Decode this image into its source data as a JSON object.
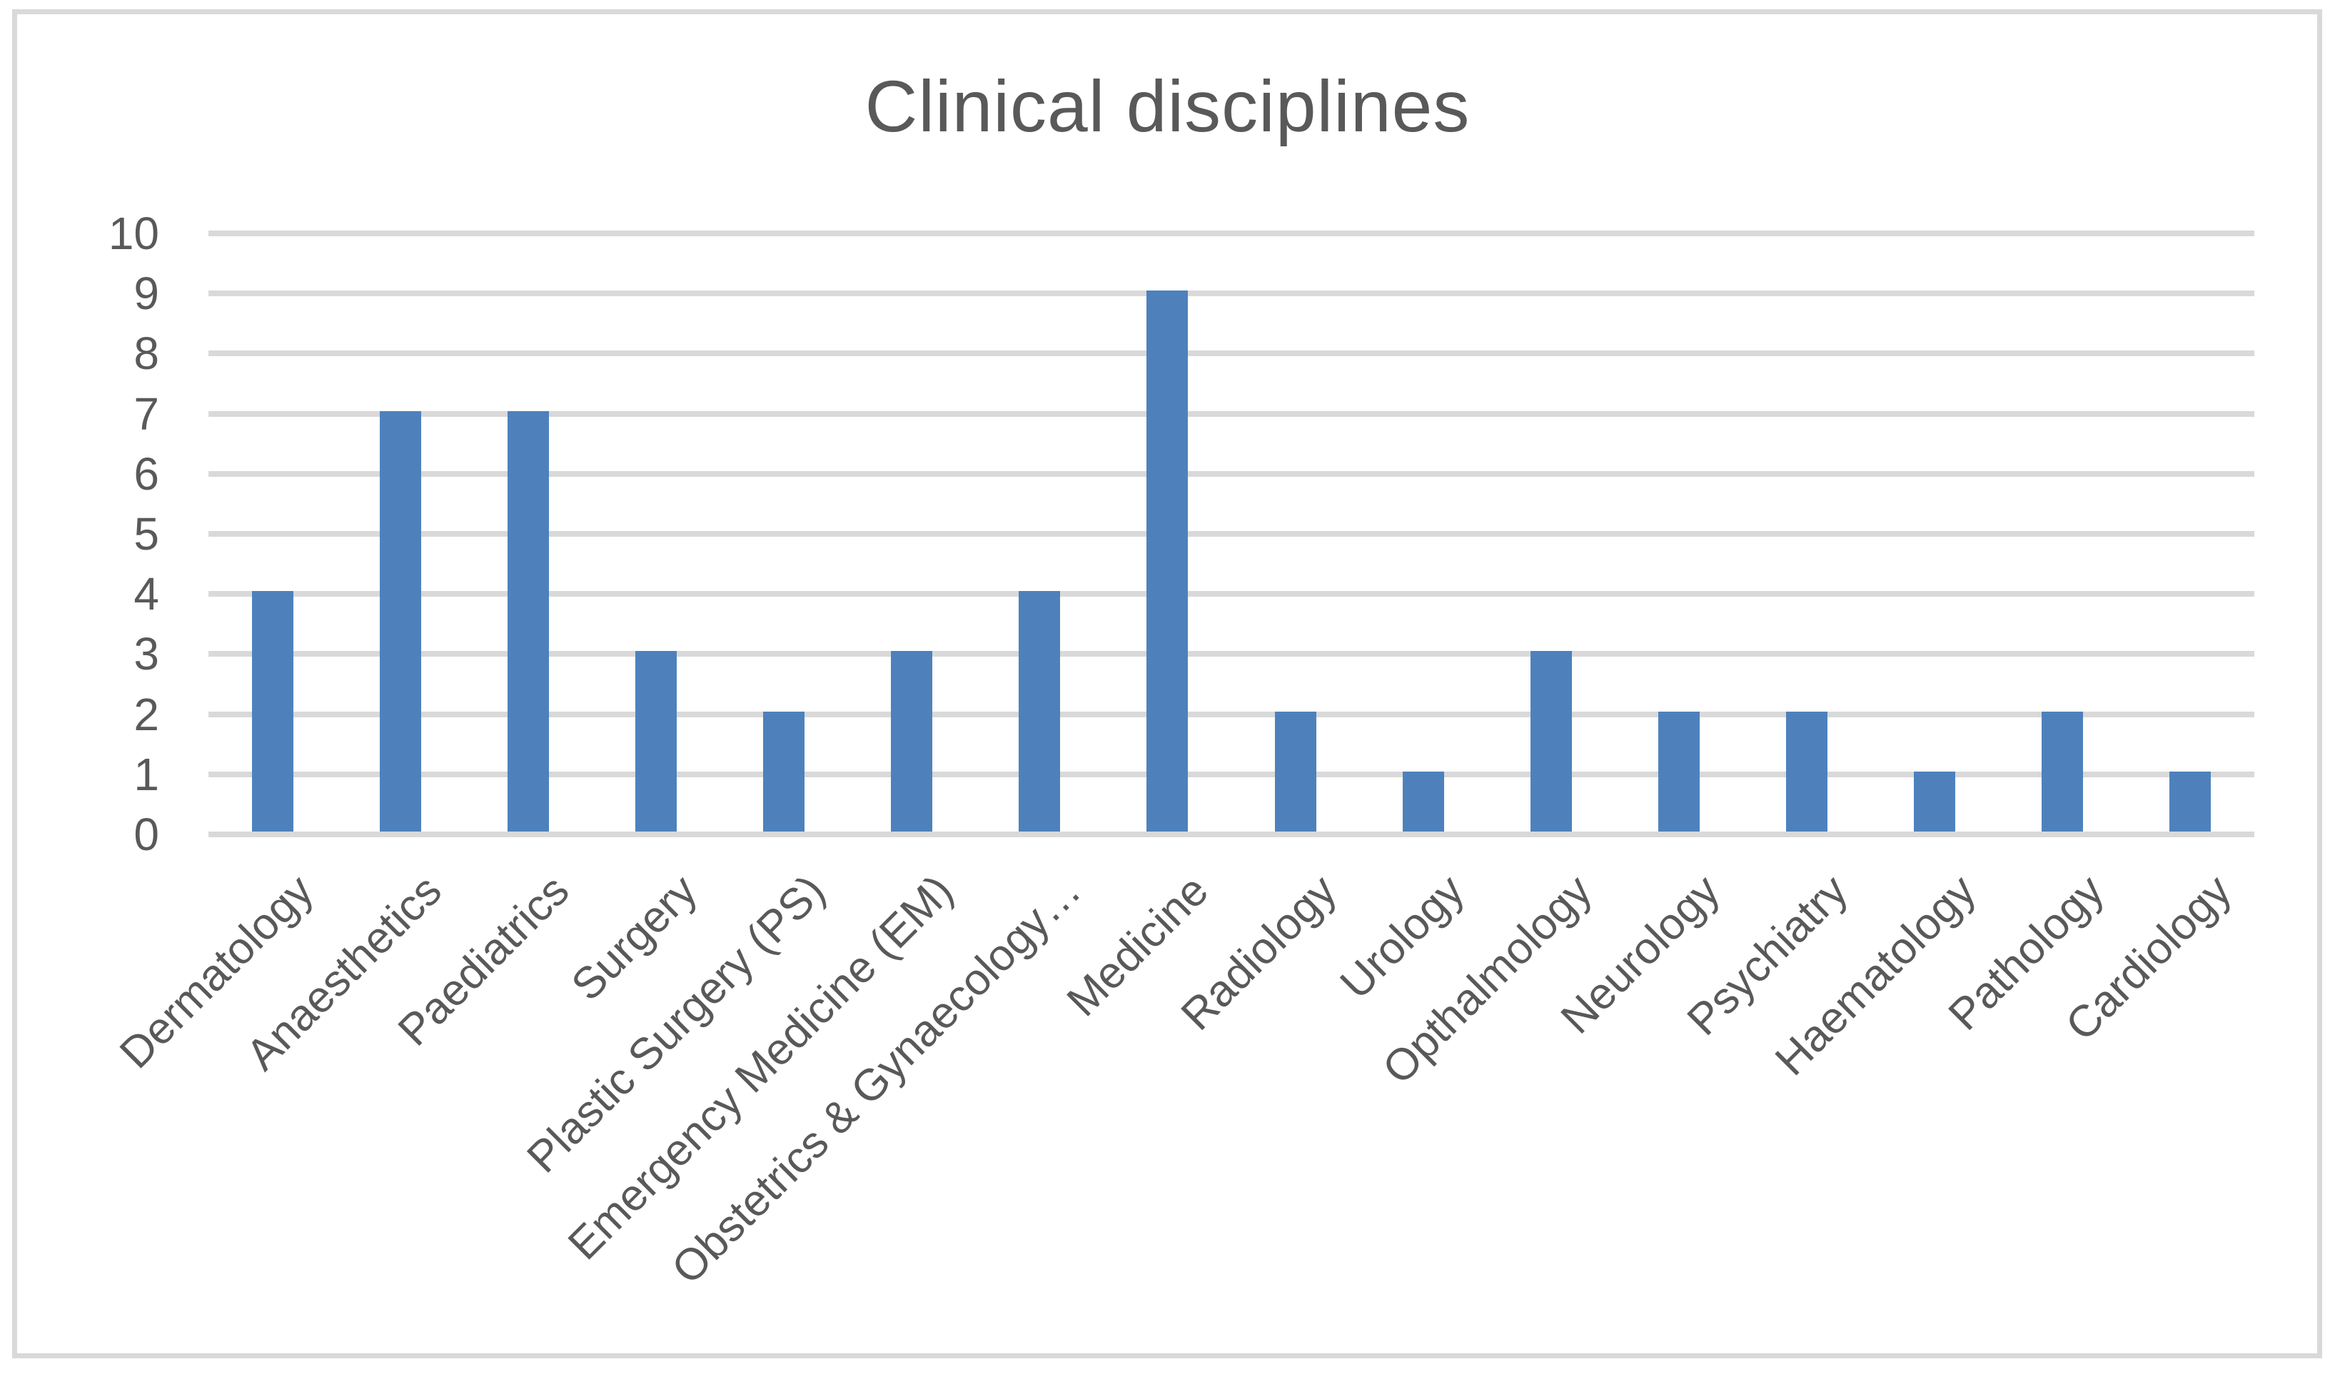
{
  "chart_data": {
    "type": "bar",
    "title": "Clinical disciplines",
    "categories": [
      "Dermatology",
      "Anaesthetics",
      "Paediatrics",
      "Surgery",
      "Plastic Surgery (PS)",
      "Emergency Medicine (EM)",
      "Obstetrics & Gynaecology…",
      "Medicine",
      "Radiology",
      "Urology",
      "Opthalmology",
      "Neurology",
      "Psychiatry",
      "Haematology",
      "Pathology",
      "Cardiology"
    ],
    "values": [
      4,
      7,
      7,
      3,
      2,
      3,
      4,
      9,
      2,
      1,
      3,
      2,
      2,
      1,
      2,
      1
    ],
    "xlabel": "",
    "ylabel": "",
    "ylim": [
      0,
      10
    ],
    "yticks": [
      0,
      1,
      2,
      3,
      4,
      5,
      6,
      7,
      8,
      9,
      10
    ],
    "grid": "horizontal",
    "legend": "none",
    "colors": {
      "bar": "#4E81BC",
      "gridline": "#D9D9D9",
      "frame_border": "#D9D9D9",
      "text": "#595959",
      "background": "#FFFFFF"
    }
  }
}
